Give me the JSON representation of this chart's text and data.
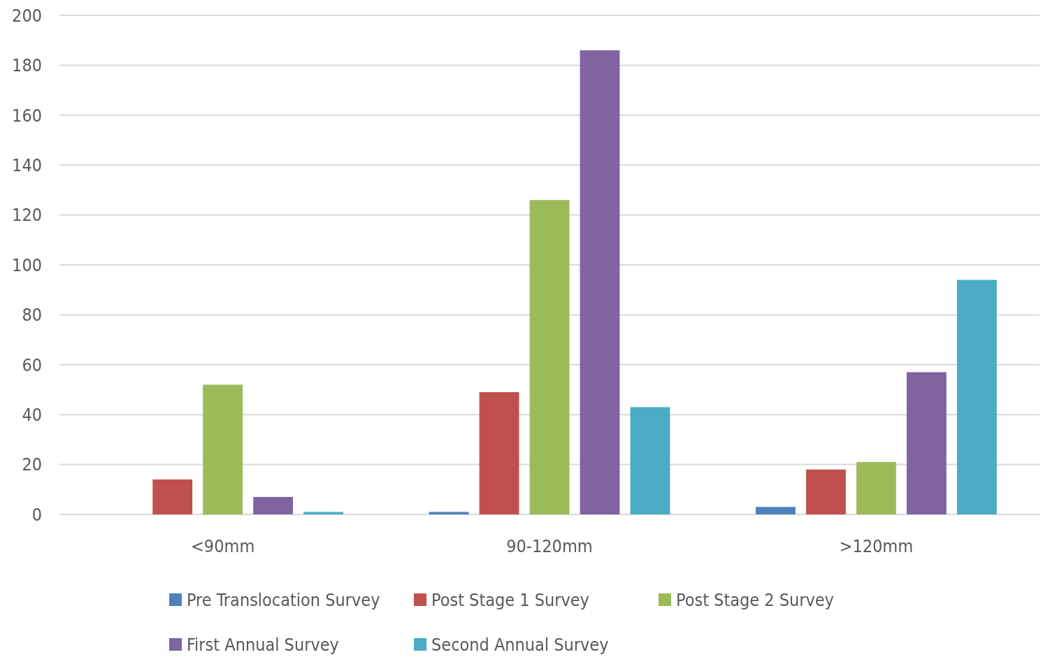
{
  "chart_data": {
    "type": "bar",
    "categories": [
      "<90mm",
      "90-120mm",
      ">120mm"
    ],
    "series": [
      {
        "name": "Pre Translocation Survey",
        "color": "#4f81bd",
        "values": [
          0,
          1,
          3
        ]
      },
      {
        "name": "Post Stage 1 Survey",
        "color": "#c0504d",
        "values": [
          14,
          49,
          18
        ]
      },
      {
        "name": "Post Stage 2 Survey",
        "color": "#9bbb59",
        "values": [
          52,
          126,
          21
        ]
      },
      {
        "name": "First Annual Survey",
        "color": "#8064a2",
        "values": [
          7,
          186,
          57
        ]
      },
      {
        "name": "Second Annual Survey",
        "color": "#4bacc6",
        "values": [
          1,
          43,
          94
        ]
      }
    ],
    "ylim": [
      0,
      200
    ],
    "yticks": [
      0,
      20,
      40,
      60,
      80,
      100,
      120,
      140,
      160,
      180,
      200
    ],
    "grid": "y",
    "legend": "bottom"
  }
}
